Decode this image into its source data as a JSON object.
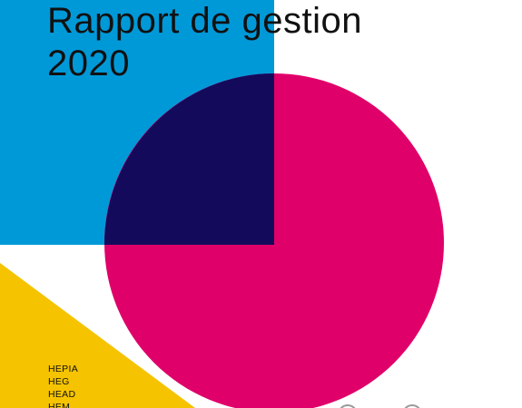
{
  "cover": {
    "title_line1": "Rapport de gestion",
    "title_line2": "2020",
    "schools": [
      "HEPIA",
      "HEG",
      "HEAD",
      "HEM"
    ]
  },
  "colors": {
    "blue": "#0099d8",
    "pink": "#e0006a",
    "navy": "#140a5c",
    "yellow": "#f5c300",
    "text": "#111111"
  }
}
